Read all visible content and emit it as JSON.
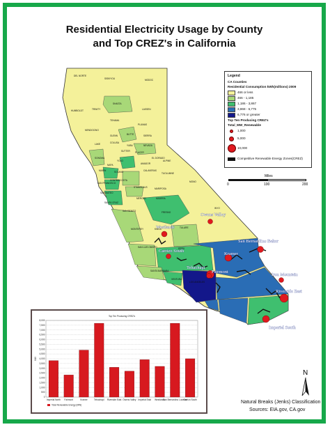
{
  "title_line1": "Residential Electricity Usage by County",
  "title_line2": "and Top CREZ's in California",
  "colors": {
    "frame": "#17a84a",
    "class1": "#f4f19a",
    "class2": "#a8d878",
    "class3": "#3fbf6f",
    "class4": "#2a6db5",
    "class5": "#13178a",
    "crez": "#e0191f",
    "bar": "#d7191f",
    "zone": "#111111"
  },
  "legend": {
    "heading": "Legend",
    "layer": "CA Counties",
    "field": "Residential Consumption kWh(millions) 2009",
    "classes": [
      {
        "label": "466 or less",
        "color": "#f4f19a"
      },
      {
        "label": "466 - 1,185",
        "color": "#a8d878"
      },
      {
        "label": "1,186 - 3,867",
        "color": "#3fbf6f"
      },
      {
        "label": "3,868 - 6,775",
        "color": "#2a6db5"
      },
      {
        "label": "6,776 or greater",
        "color": "#13178a"
      }
    ],
    "crez_layer": "Top Ten Producing CREZ's",
    "crez_field": "Total_MW_Renewable",
    "sizes": [
      "1,000",
      "5,000",
      "10,000"
    ],
    "zone_label": "Competitive Renewable Energy Zones(CREZ)"
  },
  "scale": {
    "label": "Miles",
    "ticks": [
      "0",
      "100",
      "200"
    ]
  },
  "map": {
    "counties": [
      "DEL NORTE",
      "SISKIYOU",
      "MODOC",
      "HUMBOLDT",
      "TRINITY",
      "SHASTA",
      "LASSEN",
      "TEHAMA",
      "PLUMAS",
      "MENDOCINO",
      "GLENN",
      "BUTTE",
      "SIERRA",
      "COLUSA",
      "YUBA",
      "NEVADA",
      "LAKE",
      "SUTTER",
      "PLACER",
      "EL DORADO",
      "SONOMA",
      "YOLO",
      "NAPA",
      "AMADOR",
      "SOLANO",
      "MARIN",
      "CONTRA COSTA",
      "CALAVERAS",
      "ALPINE",
      "TUOLUMNE",
      "SAN FRANCISCO",
      "SAN MATEO",
      "STANISLAUS",
      "MONO",
      "MARIPOSA",
      "SANTA CRUZ",
      "MERCED",
      "MADERA",
      "SAN BENITO",
      "FRESNO",
      "INYO",
      "MONTEREY",
      "KINGS",
      "TULARE",
      "SAN LUIS OBISPO",
      "KERN",
      "SANTA BARBARA",
      "VENTURA",
      "LOS ANGELES"
    ],
    "crez": [
      "Owens Valley",
      "Westlands",
      "Carrizo South",
      "Kramer",
      "San Bernardino Baker",
      "Tehachapi",
      "Fairmont",
      "Iron Mountain",
      "Riverside East",
      "Imperial South"
    ]
  },
  "notes": {
    "classification": "Natural Breaks (Jenks) Classification",
    "sources": "Sources:  EIA.gov, CA.gov"
  },
  "north_label": "N",
  "chart_data": {
    "type": "bar",
    "title": "Top Ten Producing CREZ's",
    "categories": [
      "Imperial North",
      "Fairmont",
      "Kramer",
      "Tehachapi",
      "Riverside East",
      "Owens Valley",
      "Imperial East",
      "Westlands",
      "San Bernardino Lucerne",
      "Carrizo South"
    ],
    "values": [
      3800,
      2300,
      4900,
      7700,
      3100,
      2700,
      3900,
      3200,
      7700,
      4000
    ],
    "ylim": [
      0,
      8000
    ],
    "yticks": [
      "0",
      "500",
      "1,000",
      "1,500",
      "2,000",
      "2,500",
      "3,000",
      "3,500",
      "4,000",
      "4,500",
      "5,000",
      "5,500",
      "6,000",
      "6,500",
      "7,000",
      "7,500",
      "8,000"
    ],
    "ylabel": "MW",
    "legend": "Total Renewable Energy (MW)",
    "color": "#d7191f"
  }
}
